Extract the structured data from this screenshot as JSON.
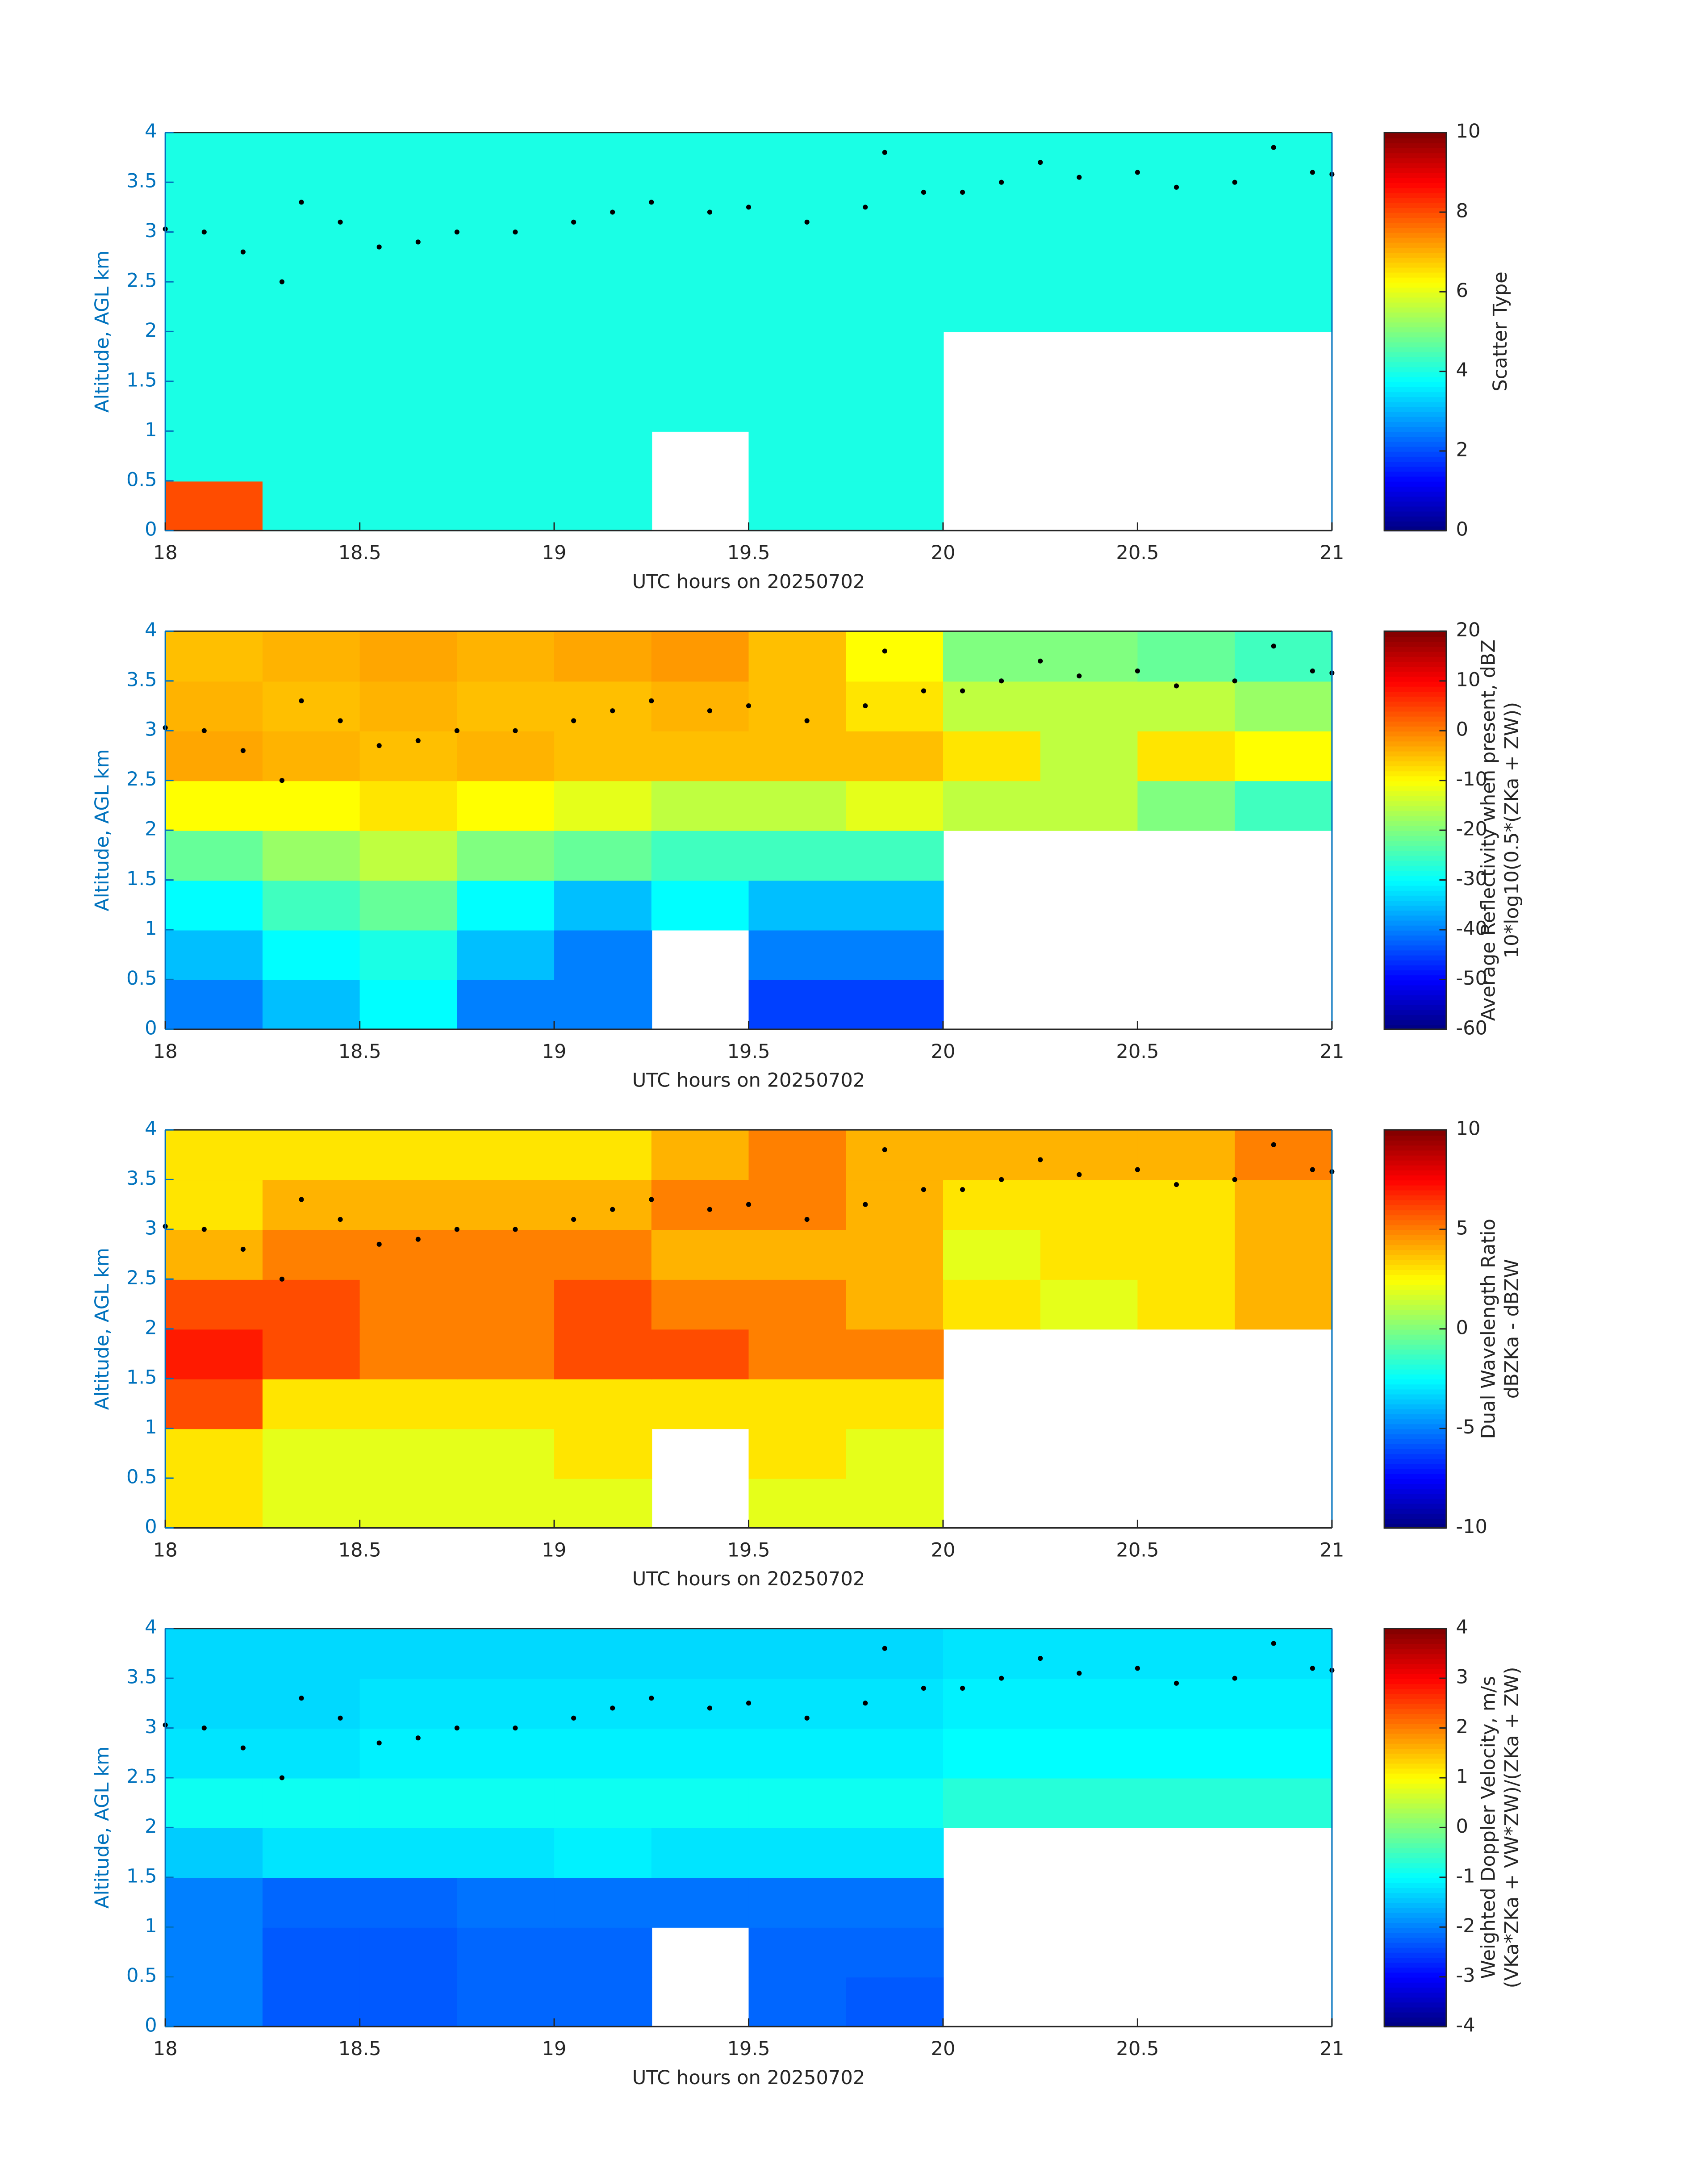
{
  "chart_data": [
    {
      "type": "heatmap",
      "colormap": "jet",
      "xlabel": "UTC hours on 20250702",
      "ylabel": "Altitude, AGL km",
      "xlim": [
        18,
        21
      ],
      "xticks": [
        18,
        18.5,
        19,
        19.5,
        20,
        20.5,
        21
      ],
      "ylim": [
        0,
        4
      ],
      "yticks": [
        0,
        0.5,
        1,
        1.5,
        2,
        2.5,
        3,
        3.5,
        4
      ],
      "x_edges": [
        18,
        18.25,
        18.5,
        18.75,
        19,
        19.25,
        19.5,
        19.75,
        20,
        20.25,
        20.5,
        20.75,
        21
      ],
      "y_edges": [
        0,
        0.5,
        1,
        1.5,
        2,
        2.5,
        3,
        3.5,
        4
      ],
      "values": [
        [
          8,
          4,
          4,
          4,
          4,
          null,
          4,
          4,
          null,
          null,
          null,
          null
        ],
        [
          4,
          4,
          4,
          4,
          4,
          null,
          4,
          4,
          null,
          null,
          null,
          null
        ],
        [
          4,
          4,
          4,
          4,
          4,
          4,
          4,
          4,
          null,
          null,
          null,
          null
        ],
        [
          4,
          4,
          4,
          4,
          4,
          4,
          4,
          4,
          null,
          null,
          null,
          null
        ],
        [
          4,
          4,
          4,
          4,
          4,
          4,
          4,
          4,
          4,
          4,
          4,
          4
        ],
        [
          4,
          4,
          4,
          4,
          4,
          4,
          4,
          4,
          4,
          4,
          4,
          4
        ],
        [
          4,
          4,
          4,
          4,
          4,
          4,
          4,
          4,
          4,
          4,
          4,
          4
        ],
        [
          4,
          4,
          4,
          4,
          4,
          4,
          4,
          4,
          4,
          4,
          4,
          4
        ]
      ],
      "clim": [
        0,
        10
      ],
      "cticks": [
        0,
        2,
        4,
        6,
        8,
        10
      ],
      "clabel": [
        "Scatter Type"
      ],
      "points": {
        "x": [
          18,
          18.1,
          18.2,
          18.3,
          18.35,
          18.45,
          18.55,
          18.65,
          18.75,
          18.9,
          19.05,
          19.15,
          19.25,
          19.4,
          19.5,
          19.65,
          19.8,
          19.85,
          19.95,
          20.05,
          20.15,
          20.25,
          20.35,
          20.5,
          20.6,
          20.75,
          20.85,
          20.95,
          21
        ],
        "y": [
          3.03,
          3.0,
          2.8,
          2.5,
          3.3,
          3.1,
          2.85,
          2.9,
          3.0,
          3.0,
          3.1,
          3.2,
          3.3,
          3.2,
          3.25,
          3.1,
          3.25,
          3.8,
          3.4,
          3.4,
          3.5,
          3.7,
          3.55,
          3.6,
          3.45,
          3.5,
          3.85,
          3.6,
          3.58
        ]
      }
    },
    {
      "type": "heatmap",
      "colormap": "jet",
      "xlabel": "UTC hours on 20250702",
      "ylabel": "Altitude, AGL km",
      "xlim": [
        18,
        21
      ],
      "xticks": [
        18,
        18.5,
        19,
        19.5,
        20,
        20.5,
        21
      ],
      "ylim": [
        0,
        4
      ],
      "yticks": [
        0,
        0.5,
        1,
        1.5,
        2,
        2.5,
        3,
        3.5,
        4
      ],
      "x_edges": [
        18,
        18.25,
        18.5,
        18.75,
        19,
        19.25,
        19.5,
        19.75,
        20,
        20.25,
        20.5,
        20.75,
        21
      ],
      "y_edges": [
        0,
        0.5,
        1,
        1.5,
        2,
        2.5,
        3,
        3.5,
        4
      ],
      "values": [
        [
          -40,
          -35,
          -30,
          -40,
          -40,
          null,
          -45,
          -45,
          null,
          null,
          null,
          null
        ],
        [
          -35,
          -30,
          -28,
          -35,
          -40,
          null,
          -40,
          -40,
          null,
          null,
          null,
          null
        ],
        [
          -30,
          -25,
          -22,
          -30,
          -35,
          -30,
          -35,
          -35,
          null,
          null,
          null,
          null
        ],
        [
          -22,
          -18,
          -15,
          -20,
          -22,
          -25,
          -25,
          -25,
          null,
          null,
          null,
          null
        ],
        [
          -10,
          -10,
          -8,
          -10,
          -12,
          -15,
          -15,
          -12,
          -15,
          -15,
          -20,
          -25
        ],
        [
          -3,
          -4,
          -5,
          -4,
          -5,
          -5,
          -5,
          -5,
          -8,
          -15,
          -8,
          -10
        ],
        [
          -4,
          -5,
          -4,
          -5,
          -5,
          -4,
          -5,
          -8,
          -15,
          -15,
          -15,
          -18
        ],
        [
          -5,
          -4,
          -3,
          -4,
          -3,
          -2,
          -5,
          -10,
          -20,
          -20,
          -22,
          -25
        ]
      ],
      "clim": [
        -60,
        20
      ],
      "cticks": [
        -60,
        -50,
        -40,
        -30,
        -20,
        -10,
        0,
        10,
        20
      ],
      "clabel": [
        "Average Reflectivity when present, dBZ",
        "10*log10(0.5*(ZKa + ZW))"
      ],
      "points": {
        "x": [
          18,
          18.1,
          18.2,
          18.3,
          18.35,
          18.45,
          18.55,
          18.65,
          18.75,
          18.9,
          19.05,
          19.15,
          19.25,
          19.4,
          19.5,
          19.65,
          19.8,
          19.85,
          19.95,
          20.05,
          20.15,
          20.25,
          20.35,
          20.5,
          20.6,
          20.75,
          20.85,
          20.95,
          21
        ],
        "y": [
          3.03,
          3.0,
          2.8,
          2.5,
          3.3,
          3.1,
          2.85,
          2.9,
          3.0,
          3.0,
          3.1,
          3.2,
          3.3,
          3.2,
          3.25,
          3.1,
          3.25,
          3.8,
          3.4,
          3.4,
          3.5,
          3.7,
          3.55,
          3.6,
          3.45,
          3.5,
          3.85,
          3.6,
          3.58
        ]
      }
    },
    {
      "type": "heatmap",
      "colormap": "jet",
      "xlabel": "UTC hours on 20250702",
      "ylabel": "Altitude, AGL km",
      "xlim": [
        18,
        21
      ],
      "xticks": [
        18,
        18.5,
        19,
        19.5,
        20,
        20.5,
        21
      ],
      "ylim": [
        0,
        4
      ],
      "yticks": [
        0,
        0.5,
        1,
        1.5,
        2,
        2.5,
        3,
        3.5,
        4
      ],
      "x_edges": [
        18,
        18.25,
        18.5,
        18.75,
        19,
        19.25,
        19.5,
        19.75,
        20,
        20.25,
        20.5,
        20.75,
        21
      ],
      "y_edges": [
        0,
        0.5,
        1,
        1.5,
        2,
        2.5,
        3,
        3.5,
        4
      ],
      "values": [
        [
          3,
          2,
          2,
          2,
          2,
          null,
          2,
          2,
          null,
          null,
          null,
          null
        ],
        [
          3,
          2,
          2,
          2,
          3,
          null,
          3,
          2,
          null,
          null,
          null,
          null
        ],
        [
          6,
          3,
          3,
          3,
          3,
          3,
          3,
          3,
          null,
          null,
          null,
          null
        ],
        [
          7,
          6,
          5,
          5,
          6,
          6,
          5,
          5,
          null,
          null,
          null,
          null
        ],
        [
          6,
          6,
          5,
          5,
          6,
          5,
          5,
          4,
          3,
          2,
          3,
          4
        ],
        [
          4,
          5,
          5,
          5,
          5,
          4,
          4,
          4,
          2,
          3,
          3,
          4
        ],
        [
          3,
          4,
          4,
          4,
          4,
          5,
          5,
          4,
          3,
          3,
          3,
          4
        ],
        [
          3,
          3,
          3,
          3,
          3,
          4,
          5,
          4,
          4,
          4,
          4,
          5
        ]
      ],
      "clim": [
        -10,
        10
      ],
      "cticks": [
        -10,
        -5,
        0,
        5,
        10
      ],
      "clabel": [
        "Dual Wavelength Ratio",
        "dBZKa - dBZW"
      ],
      "points": {
        "x": [
          18,
          18.1,
          18.2,
          18.3,
          18.35,
          18.45,
          18.55,
          18.65,
          18.75,
          18.9,
          19.05,
          19.15,
          19.25,
          19.4,
          19.5,
          19.65,
          19.8,
          19.85,
          19.95,
          20.05,
          20.15,
          20.25,
          20.35,
          20.5,
          20.6,
          20.75,
          20.85,
          20.95,
          21
        ],
        "y": [
          3.03,
          3.0,
          2.8,
          2.5,
          3.3,
          3.1,
          2.85,
          2.9,
          3.0,
          3.0,
          3.1,
          3.2,
          3.3,
          3.2,
          3.25,
          3.1,
          3.25,
          3.8,
          3.4,
          3.4,
          3.5,
          3.7,
          3.55,
          3.6,
          3.45,
          3.5,
          3.85,
          3.6,
          3.58
        ]
      }
    },
    {
      "type": "heatmap",
      "colormap": "jet",
      "xlabel": "UTC hours on 20250702",
      "ylabel": "Altitude, AGL km",
      "xlim": [
        18,
        21
      ],
      "xticks": [
        18,
        18.5,
        19,
        19.5,
        20,
        20.5,
        21
      ],
      "ylim": [
        0,
        4
      ],
      "yticks": [
        0,
        0.5,
        1,
        1.5,
        2,
        2.5,
        3,
        3.5,
        4
      ],
      "x_edges": [
        18,
        18.25,
        18.5,
        18.75,
        19,
        19.25,
        19.5,
        19.75,
        20,
        20.25,
        20.5,
        20.75,
        21
      ],
      "y_edges": [
        0,
        0.5,
        1,
        1.5,
        2,
        2.5,
        3,
        3.5,
        4
      ],
      "values": [
        [
          -2,
          -2.3,
          -2.3,
          -2.2,
          -2.2,
          null,
          -2.2,
          -2.3,
          null,
          null,
          null,
          null
        ],
        [
          -2,
          -2.3,
          -2.3,
          -2.2,
          -2.2,
          null,
          -2.2,
          -2.2,
          null,
          null,
          null,
          null
        ],
        [
          -2,
          -2.2,
          -2.2,
          -2.1,
          -2.1,
          -2.1,
          -2.1,
          -2.1,
          null,
          null,
          null,
          null
        ],
        [
          -1.4,
          -1.2,
          -1.2,
          -1.2,
          -1.1,
          -1.2,
          -1.2,
          -1.2,
          null,
          null,
          null,
          null
        ],
        [
          -0.9,
          -0.9,
          -0.9,
          -0.9,
          -0.9,
          -0.9,
          -0.9,
          -0.9,
          -0.7,
          -0.7,
          -0.7,
          -0.7
        ],
        [
          -1.2,
          -1.2,
          -1.1,
          -1.1,
          -1.1,
          -1.1,
          -1.1,
          -1.1,
          -1,
          -1,
          -1,
          -1
        ],
        [
          -1.3,
          -1.3,
          -1.2,
          -1.2,
          -1.2,
          -1.2,
          -1.2,
          -1.2,
          -1.1,
          -1.1,
          -1.1,
          -1.1
        ],
        [
          -1.3,
          -1.3,
          -1.3,
          -1.3,
          -1.3,
          -1.3,
          -1.3,
          -1.3,
          -1.2,
          -1.2,
          -1.2,
          -1.2
        ]
      ],
      "clim": [
        -4,
        4
      ],
      "cticks": [
        -4,
        -3,
        -2,
        -1,
        0,
        1,
        2,
        3,
        4
      ],
      "clabel": [
        "Weighted Doppler Velocity, m/s",
        "(VKa*ZKa + VW*ZW)/(ZKa + ZW)"
      ],
      "points": {
        "x": [
          18,
          18.1,
          18.2,
          18.3,
          18.35,
          18.45,
          18.55,
          18.65,
          18.75,
          18.9,
          19.05,
          19.15,
          19.25,
          19.4,
          19.5,
          19.65,
          19.8,
          19.85,
          19.95,
          20.05,
          20.15,
          20.25,
          20.35,
          20.5,
          20.6,
          20.75,
          20.85,
          20.95,
          21
        ],
        "y": [
          3.03,
          3.0,
          2.8,
          2.5,
          3.3,
          3.1,
          2.85,
          2.9,
          3.0,
          3.0,
          3.1,
          3.2,
          3.3,
          3.2,
          3.25,
          3.1,
          3.25,
          3.8,
          3.4,
          3.4,
          3.5,
          3.7,
          3.55,
          3.6,
          3.45,
          3.5,
          3.85,
          3.6,
          3.58
        ]
      }
    }
  ]
}
